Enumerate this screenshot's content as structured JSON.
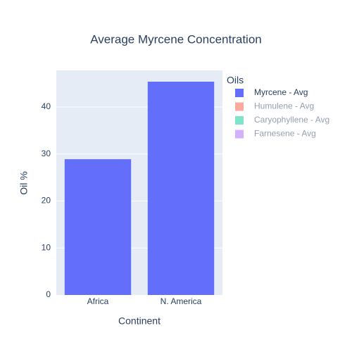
{
  "chart_data": {
    "type": "bar",
    "title": "Average Myrcene Concentration",
    "x_label": "Continent",
    "y_label": "Oil %",
    "categories": [
      "Africa",
      "N. America"
    ],
    "series": [
      {
        "name": "Myrcene - Avg",
        "color": "#636efa",
        "values": [
          28.9,
          45.4
        ]
      },
      {
        "name": "Humulene - Avg",
        "color": "#ef553b",
        "values": [
          null,
          null
        ],
        "hidden": true
      },
      {
        "name": "Caryophyllene - Avg",
        "color": "#00cc96",
        "values": [
          null,
          null
        ],
        "hidden": true
      },
      {
        "name": "Farnesene - Avg",
        "color": "#ab63fa",
        "values": [
          null,
          null
        ],
        "hidden": true
      }
    ],
    "legend_title": "Oils",
    "legend": "right",
    "ylim": [
      0,
      47.8
    ],
    "yticks": [
      0,
      10,
      20,
      30,
      40
    ],
    "grid": true
  }
}
